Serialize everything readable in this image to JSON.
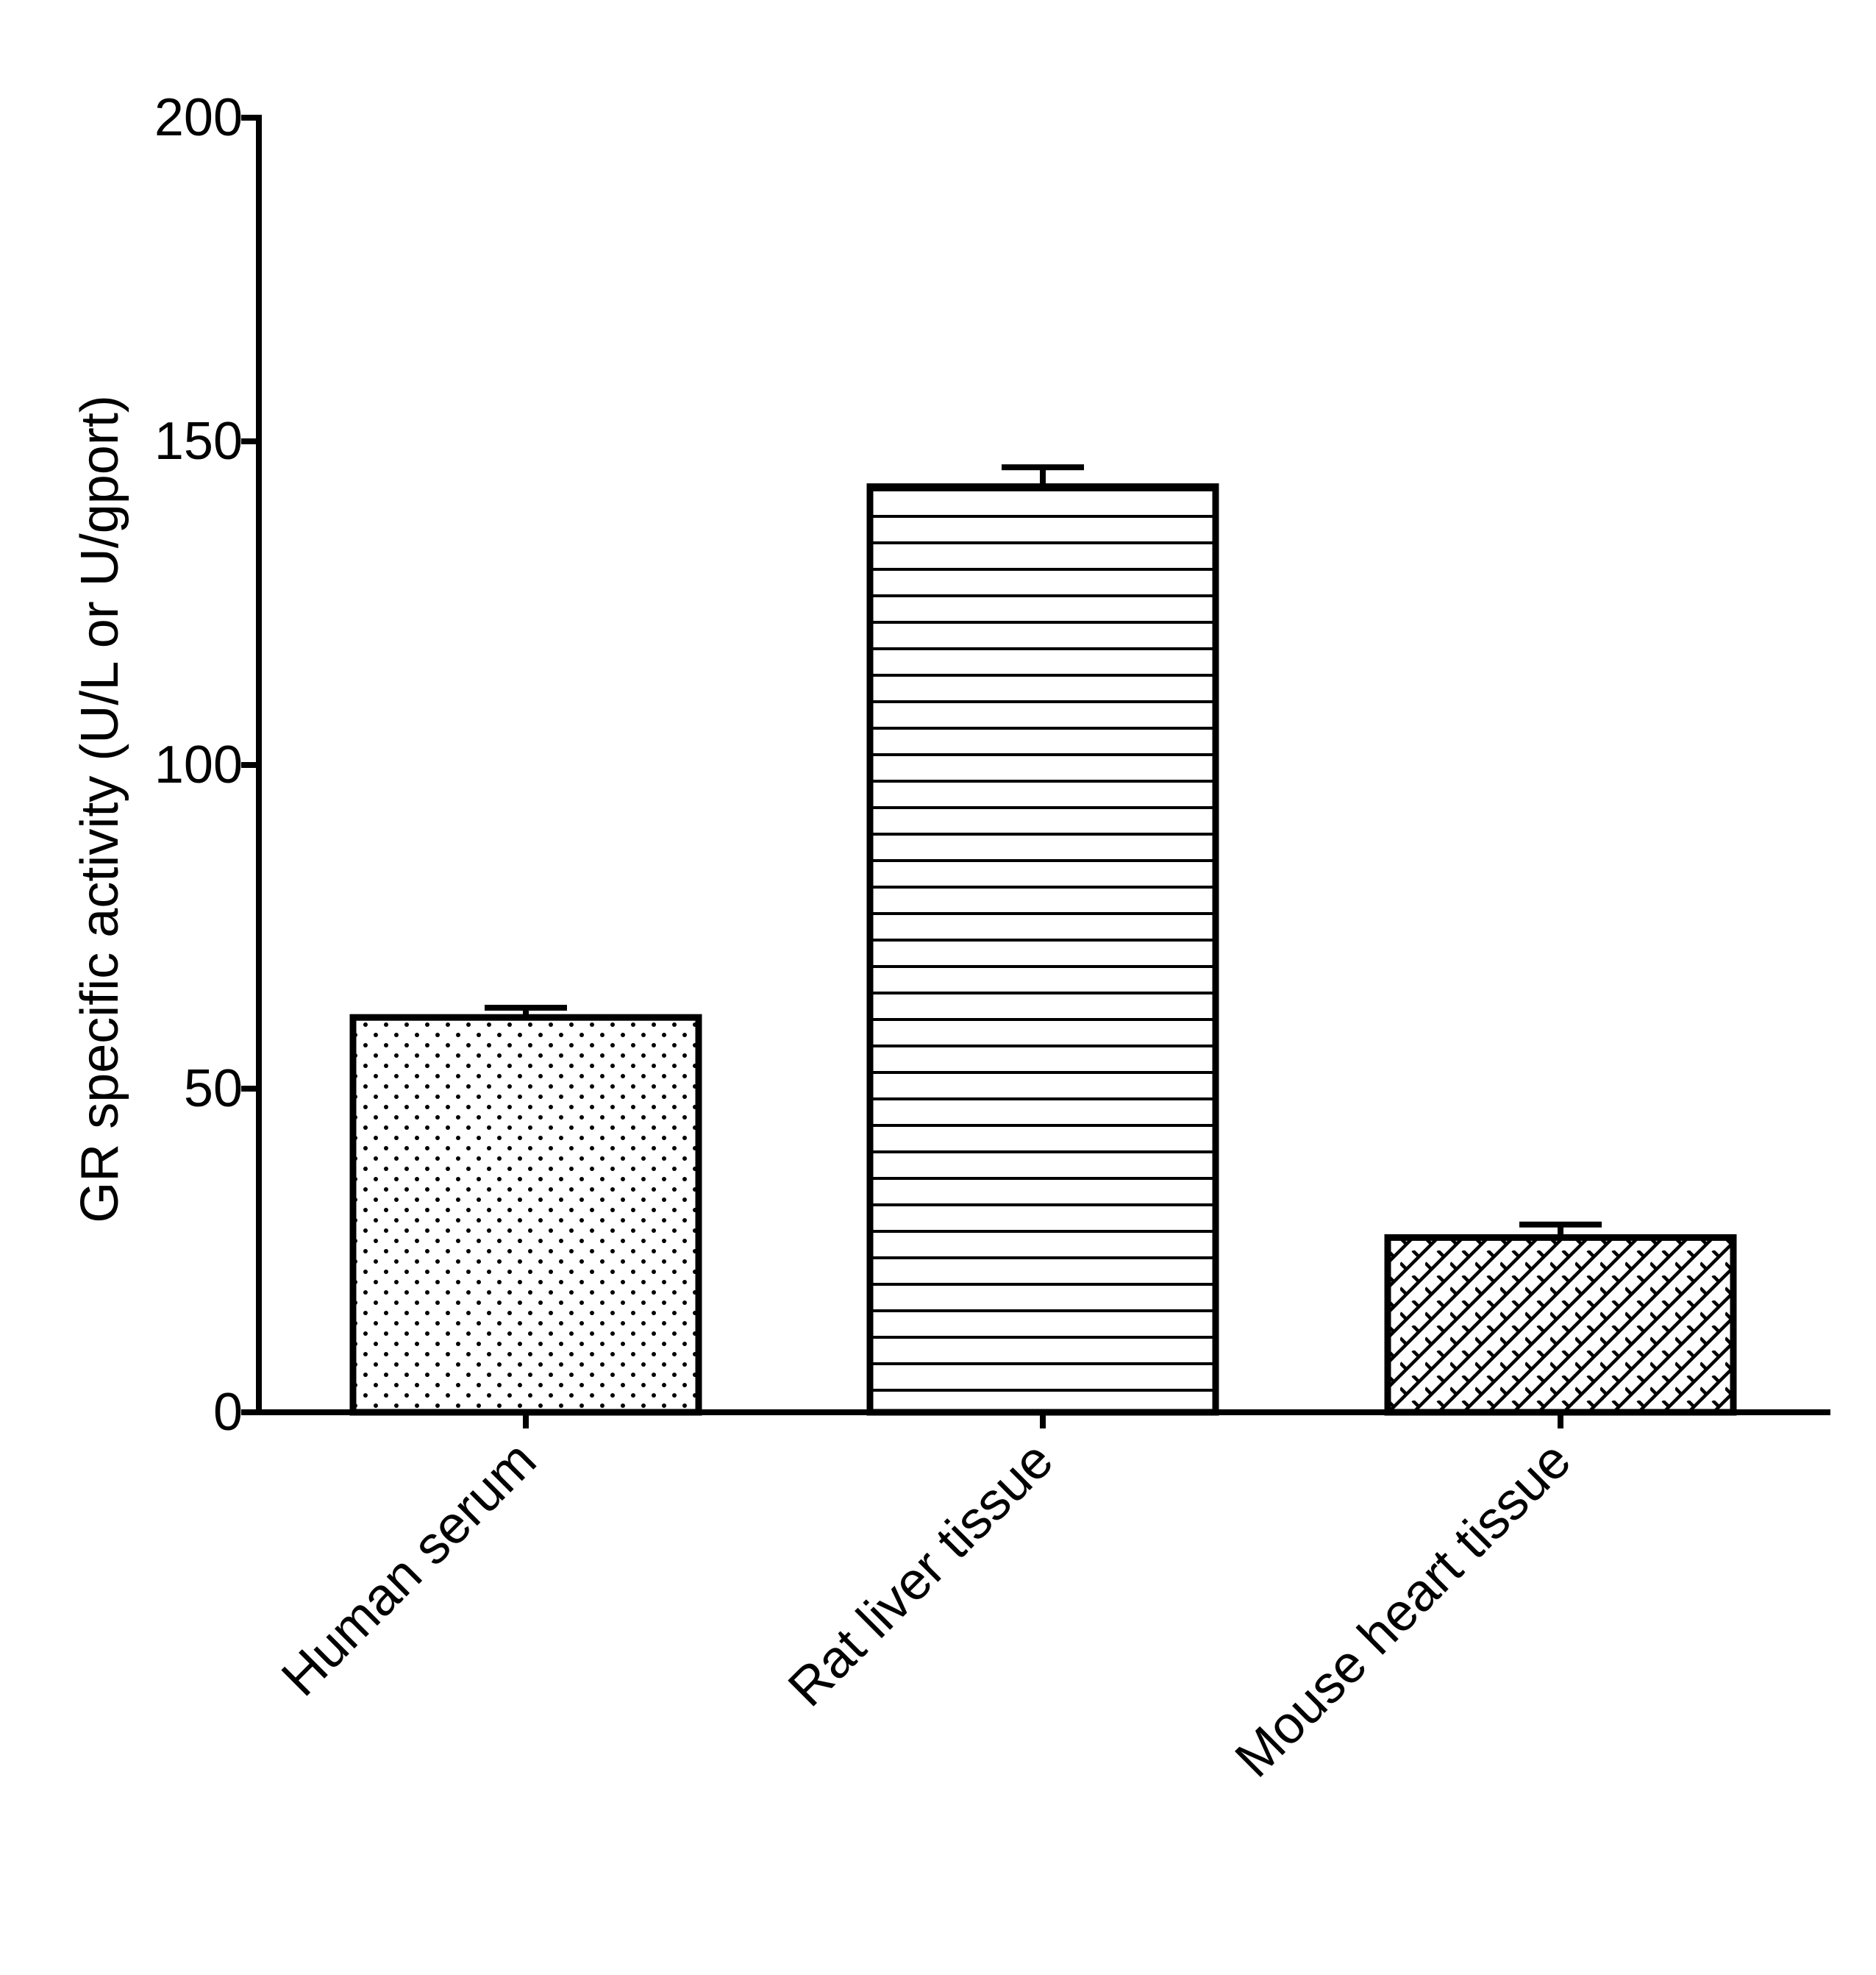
{
  "chart_data": {
    "type": "bar",
    "title": "",
    "xlabel": "",
    "ylabel": "GR specific activity (U/L or U/gport)",
    "ylim": [
      0,
      200
    ],
    "yticks": [
      0,
      50,
      100,
      150,
      200
    ],
    "grid": false,
    "legend": "none",
    "categories": [
      "Human serum",
      "Rat liver tissue",
      "Mouse heart tissue"
    ],
    "values": [
      61,
      143,
      27
    ],
    "error": [
      1.5,
      3,
      2
    ],
    "patterns": [
      "dots",
      "horizontal-lines",
      "crosshatch"
    ],
    "colors": {
      "stroke": "#000000",
      "background": "#ffffff"
    }
  }
}
